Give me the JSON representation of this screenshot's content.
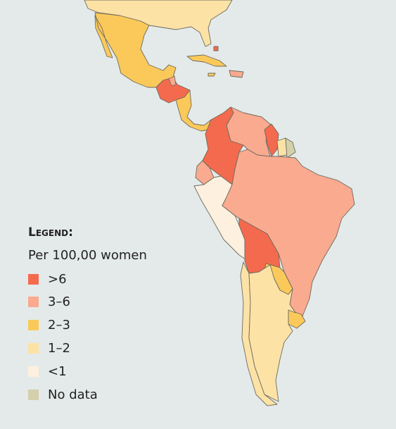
{
  "legend": {
    "title": "Legend:",
    "subtitle": "Per 100,00 women",
    "items": [
      {
        "label": ">6",
        "color": "#f46a4e"
      },
      {
        "label": "3–6",
        "color": "#f9aa8f"
      },
      {
        "label": "2–3",
        "color": "#fbc95a"
      },
      {
        "label": "1–2",
        "color": "#fde2a6"
      },
      {
        "label": "<1",
        "color": "#fdf0de"
      },
      {
        "label": "No data",
        "color": "#d3d0ab"
      }
    ]
  }
}
